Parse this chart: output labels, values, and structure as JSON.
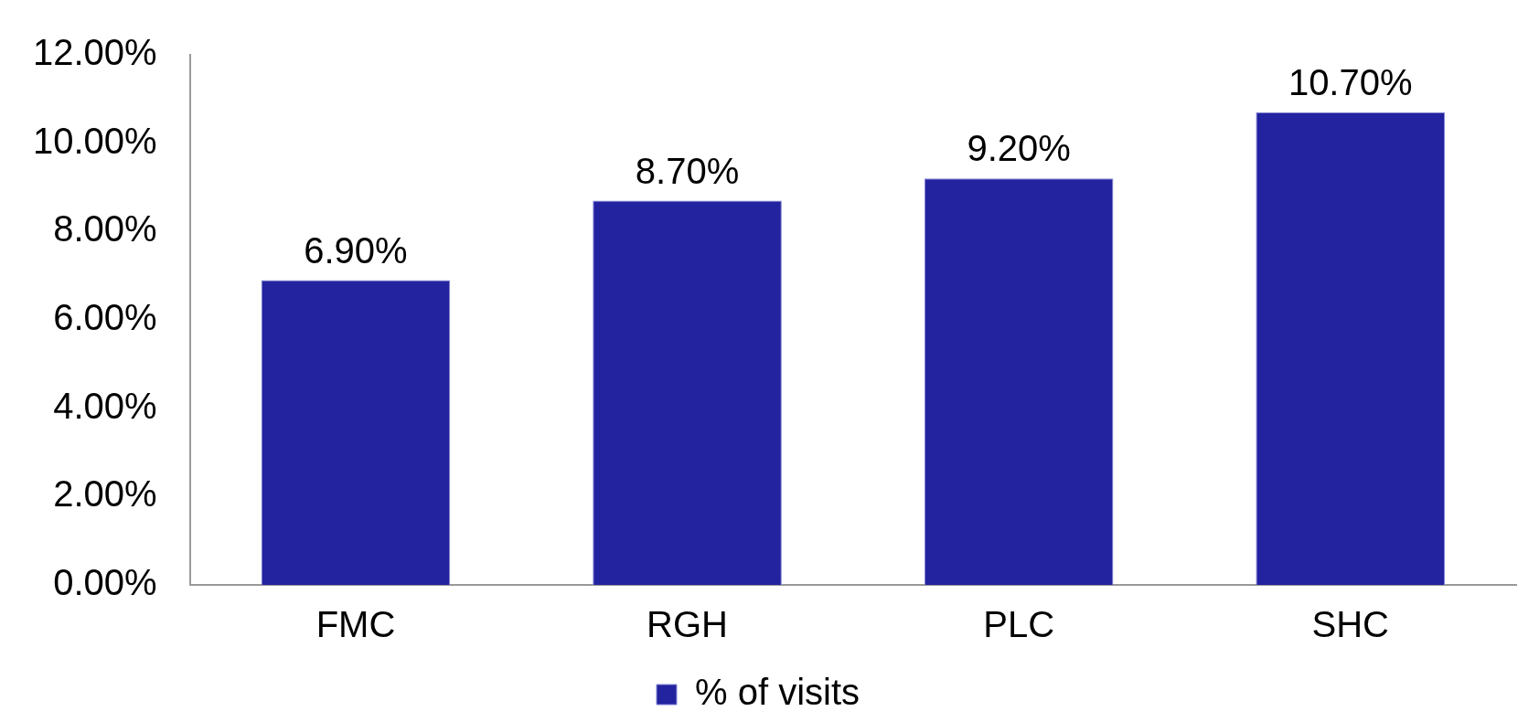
{
  "chart_data": {
    "type": "bar",
    "categories": [
      "FMC",
      "RGH",
      "PLC",
      "SHC"
    ],
    "series": [
      {
        "name": "% of visits",
        "color": "#2323a0",
        "values": [
          6.9,
          8.7,
          9.2,
          10.7
        ]
      }
    ],
    "value_labels": [
      "6.90%",
      "8.70%",
      "9.20%",
      "10.70%"
    ],
    "ylim": [
      0,
      12
    ],
    "yticks": [
      {
        "value": 0,
        "label": "0.00%"
      },
      {
        "value": 2,
        "label": "2.00%"
      },
      {
        "value": 4,
        "label": "4.00%"
      },
      {
        "value": 6,
        "label": "6.00%"
      },
      {
        "value": 8,
        "label": "8.00%"
      },
      {
        "value": 10,
        "label": "10.00%"
      },
      {
        "value": 12,
        "label": "12.00%"
      }
    ],
    "grid": false,
    "legend": "bottom"
  }
}
